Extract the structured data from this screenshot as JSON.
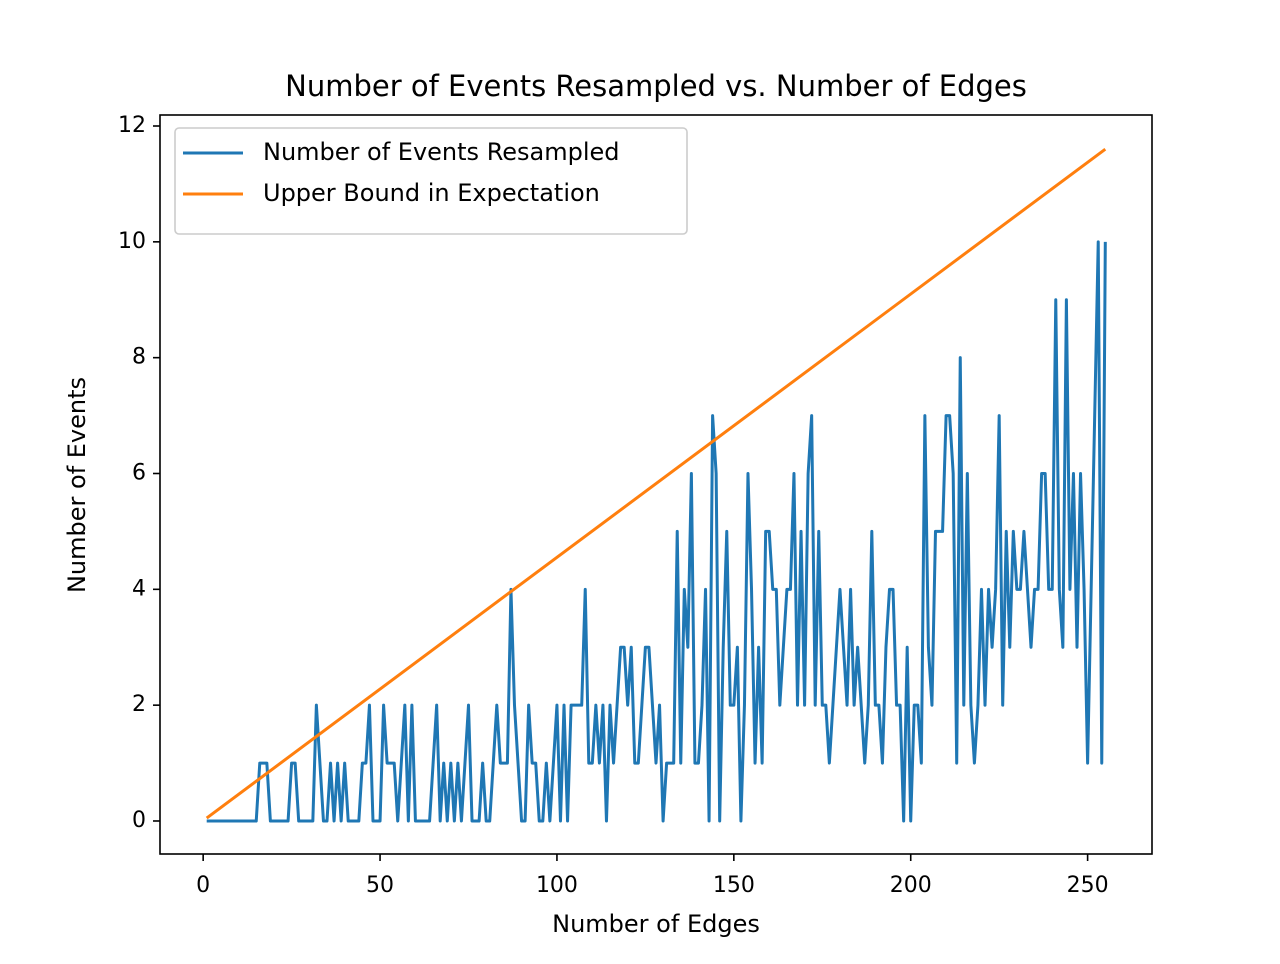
{
  "chart_data": {
    "type": "line",
    "title": "Number of Events Resampled vs. Number of Edges",
    "x_label": "Number of Edges",
    "y_label": "Number of Events",
    "xlim": [
      -12.2,
      268.2
    ],
    "ylim": [
      -0.57,
      12.19
    ],
    "xticks": [
      0,
      50,
      100,
      150,
      200,
      250
    ],
    "yticks": [
      0,
      2,
      4,
      6,
      8,
      10,
      12
    ],
    "legend_position": "upper left",
    "series": [
      {
        "name": "Number of Events Resampled",
        "color": "#1f77b4",
        "x": [
          1,
          2,
          3,
          4,
          5,
          6,
          7,
          8,
          9,
          10,
          11,
          12,
          13,
          14,
          15,
          16,
          17,
          18,
          19,
          20,
          21,
          22,
          23,
          24,
          25,
          26,
          27,
          28,
          29,
          30,
          31,
          32,
          33,
          34,
          35,
          36,
          37,
          38,
          39,
          40,
          41,
          42,
          43,
          44,
          45,
          46,
          47,
          48,
          49,
          50,
          51,
          52,
          53,
          54,
          55,
          56,
          57,
          58,
          59,
          60,
          61,
          62,
          63,
          64,
          65,
          66,
          67,
          68,
          69,
          70,
          71,
          72,
          73,
          74,
          75,
          76,
          77,
          78,
          79,
          80,
          81,
          82,
          83,
          84,
          85,
          86,
          87,
          88,
          89,
          90,
          91,
          92,
          93,
          94,
          95,
          96,
          97,
          98,
          99,
          100,
          101,
          102,
          103,
          104,
          105,
          106,
          107,
          108,
          109,
          110,
          111,
          112,
          113,
          114,
          115,
          116,
          117,
          118,
          119,
          120,
          121,
          122,
          123,
          124,
          125,
          126,
          127,
          128,
          129,
          130,
          131,
          132,
          133,
          134,
          135,
          136,
          137,
          138,
          139,
          140,
          141,
          142,
          143,
          144,
          145,
          146,
          147,
          148,
          149,
          150,
          151,
          152,
          153,
          154,
          155,
          156,
          157,
          158,
          159,
          160,
          161,
          162,
          163,
          164,
          165,
          166,
          167,
          168,
          169,
          170,
          171,
          172,
          173,
          174,
          175,
          176,
          177,
          178,
          179,
          180,
          181,
          182,
          183,
          184,
          185,
          186,
          187,
          188,
          189,
          190,
          191,
          192,
          193,
          194,
          195,
          196,
          197,
          198,
          199,
          200,
          201,
          202,
          203,
          204,
          205,
          206,
          207,
          208,
          209,
          210,
          211,
          212,
          213,
          214,
          215,
          216,
          217,
          218,
          219,
          220,
          221,
          222,
          223,
          224,
          225,
          226,
          227,
          228,
          229,
          230,
          231,
          232,
          233,
          234,
          235,
          236,
          237,
          238,
          239,
          240,
          241,
          242,
          243,
          244,
          245,
          246,
          247,
          248,
          249,
          250,
          251,
          252,
          253,
          254,
          255
        ],
        "values": [
          0,
          0,
          0,
          0,
          0,
          0,
          0,
          0,
          0,
          0,
          0,
          0,
          0,
          0,
          0,
          1,
          1,
          1,
          0,
          0,
          0,
          0,
          0,
          0,
          1,
          1,
          0,
          0,
          0,
          0,
          0,
          2,
          1,
          0,
          0,
          1,
          0,
          1,
          0,
          1,
          0,
          0,
          0,
          0,
          1,
          1,
          2,
          0,
          0,
          0,
          2,
          1,
          1,
          1,
          0,
          1,
          2,
          0,
          2,
          0,
          0,
          0,
          0,
          0,
          1,
          2,
          0,
          1,
          0,
          1,
          0,
          1,
          0,
          1,
          2,
          0,
          0,
          0,
          1,
          0,
          0,
          1,
          2,
          1,
          1,
          1,
          4,
          2,
          1,
          0,
          0,
          2,
          1,
          1,
          0,
          0,
          1,
          0,
          1,
          2,
          0,
          2,
          0,
          2,
          2,
          2,
          2,
          4,
          1,
          1,
          2,
          1,
          2,
          0,
          2,
          1,
          2,
          3,
          3,
          2,
          3,
          1,
          1,
          2,
          3,
          3,
          2,
          1,
          2,
          0,
          1,
          1,
          1,
          5,
          1,
          4,
          3,
          6,
          1,
          1,
          2,
          4,
          0,
          7,
          6,
          0,
          3,
          5,
          2,
          2,
          3,
          0,
          2,
          6,
          4,
          1,
          3,
          1,
          5,
          5,
          4,
          4,
          2,
          3,
          4,
          4,
          6,
          2,
          5,
          2,
          6,
          7,
          2,
          5,
          2,
          2,
          1,
          2,
          3,
          4,
          3,
          2,
          4,
          2,
          3,
          2,
          1,
          2,
          5,
          2,
          2,
          1,
          3,
          4,
          4,
          2,
          2,
          0,
          3,
          0,
          2,
          2,
          1,
          7,
          3,
          2,
          5,
          5,
          5,
          7,
          7,
          6,
          1,
          8,
          2,
          6,
          2,
          1,
          2,
          4,
          2,
          4,
          3,
          4,
          7,
          2,
          5,
          3,
          5,
          4,
          4,
          5,
          4,
          3,
          4,
          4,
          6,
          6,
          4,
          4,
          9,
          4,
          3,
          9,
          4,
          6,
          3,
          6,
          4,
          1,
          4,
          7,
          10,
          1,
          10
        ]
      },
      {
        "name": "Upper Bound in Expectation",
        "color": "#ff7f0e",
        "x": [
          1,
          255
        ],
        "values": [
          0.05,
          11.6
        ]
      }
    ]
  }
}
